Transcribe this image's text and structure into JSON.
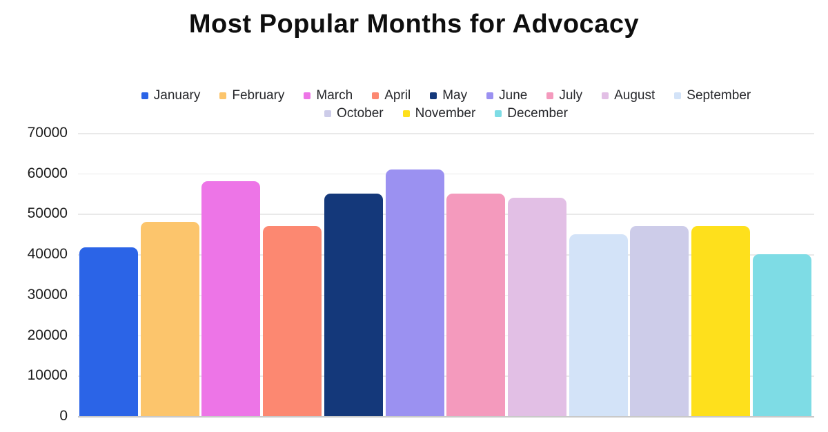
{
  "chart_data": {
    "type": "bar",
    "title": "Most Popular Months for Advocacy",
    "categories": [
      "January",
      "February",
      "March",
      "April",
      "May",
      "June",
      "July",
      "August",
      "September",
      "October",
      "November",
      "December"
    ],
    "values": [
      41700,
      48000,
      58000,
      47000,
      55000,
      61000,
      55000,
      54000,
      45000,
      47000,
      47000,
      40000
    ],
    "colors": [
      "#2b64e7",
      "#fcc56c",
      "#ed75e7",
      "#fc8871",
      "#14387a",
      "#9b91f1",
      "#f49abd",
      "#e2bfe5",
      "#d3e3f8",
      "#cdcce9",
      "#fee01c",
      "#7edce5"
    ],
    "xlabel": "",
    "ylabel": "",
    "ylim": [
      0,
      70000
    ],
    "ytick_step": 10000,
    "ytick_labels": [
      "0",
      "10000",
      "20000",
      "30000",
      "40000",
      "50000",
      "60000",
      "70000"
    ],
    "grid": true,
    "legend_position": "top",
    "legend_rows": [
      9,
      3
    ]
  }
}
